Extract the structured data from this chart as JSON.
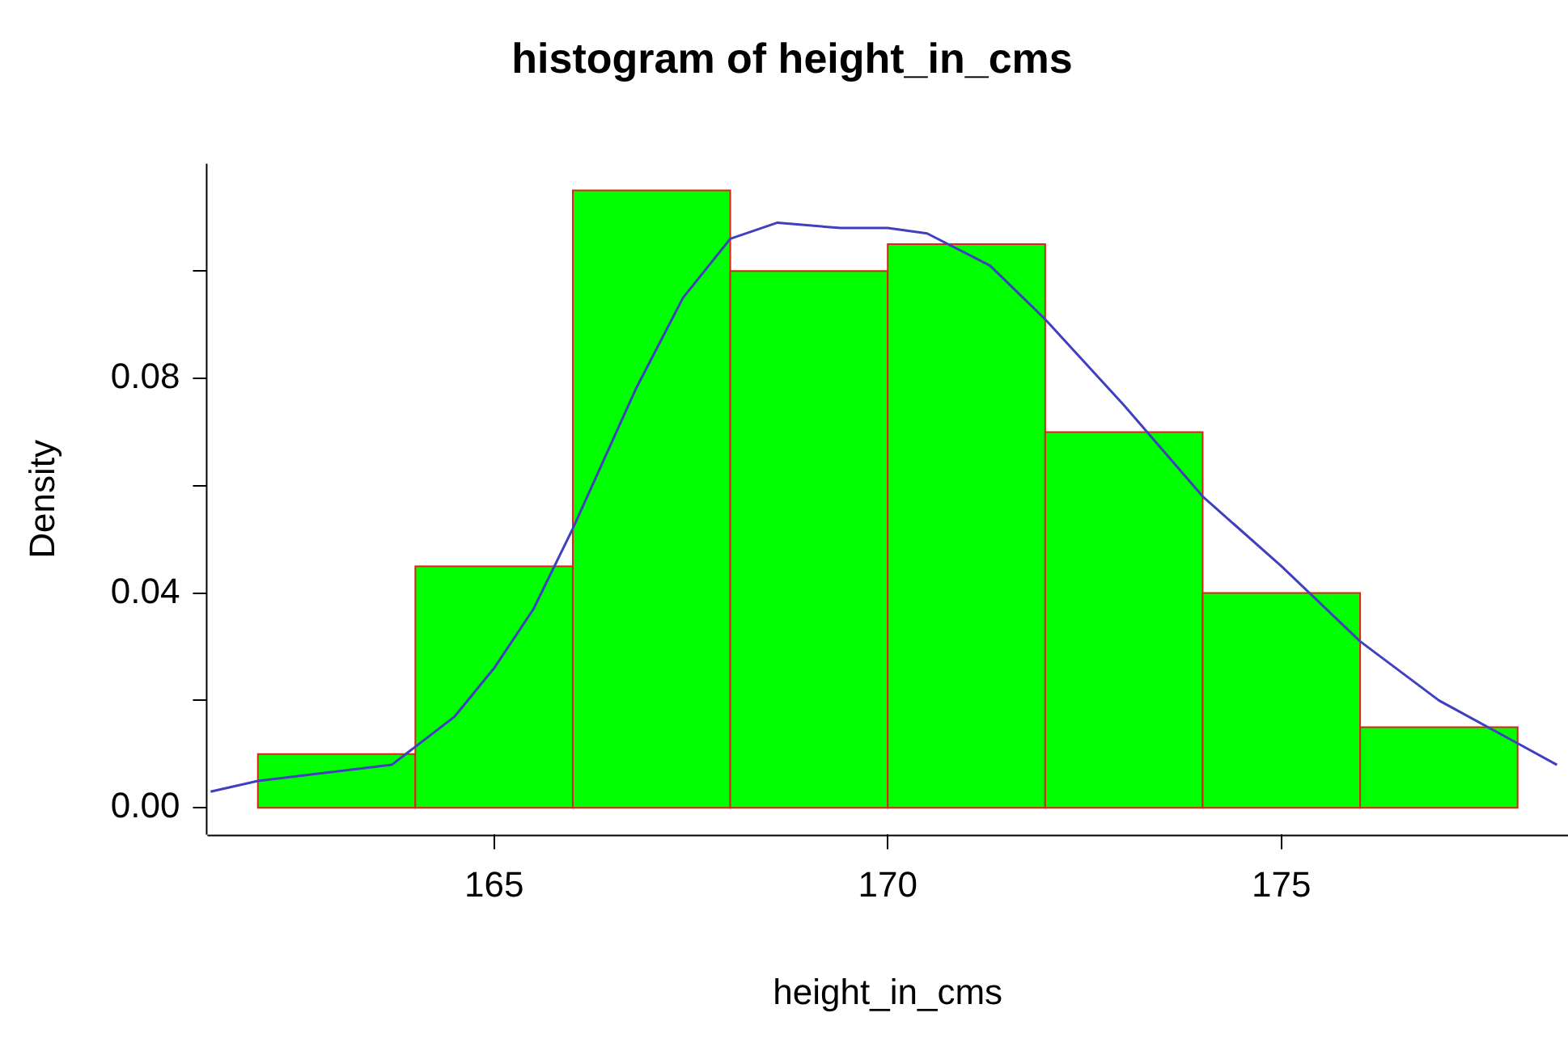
{
  "chart_data": {
    "type": "histogram",
    "title": "histogram of height_in_cms",
    "xlabel": "height_in_cms",
    "ylabel": "Density",
    "bins": [
      162,
      164,
      166,
      168,
      170,
      172,
      174,
      176,
      178
    ],
    "values": [
      0.01,
      0.045,
      0.115,
      0.1,
      0.105,
      0.07,
      0.04,
      0.015
    ],
    "color": "#00ff00",
    "series": [
      {
        "type": "line",
        "color": "#3f3fbf",
        "marker": "none",
        "x": [
          161.4,
          162,
          163.7,
          164.5,
          165,
          165.5,
          166,
          166.8,
          167.4,
          168,
          168.6,
          169.4,
          170,
          170.5,
          171.3,
          172,
          173,
          174,
          175,
          176,
          177,
          178,
          178.5
        ],
        "values": [
          0.003,
          0.005,
          0.008,
          0.017,
          0.026,
          0.037,
          0.052,
          0.078,
          0.095,
          0.106,
          0.109,
          0.108,
          0.108,
          0.107,
          0.101,
          0.091,
          0.075,
          0.058,
          0.045,
          0.031,
          0.02,
          0.012,
          0.008
        ]
      }
    ],
    "xlim": [
      161.36,
      178.64
    ],
    "xticks": [
      165,
      170,
      175
    ],
    "ylim": [
      -0.005,
      0.12
    ],
    "yticks": [
      {
        "value": 0,
        "label": "0.00"
      },
      {
        "value": 0.02,
        "label": null
      },
      0.04,
      {
        "value": 0.06,
        "label": null
      },
      0.08,
      {
        "value": 0.1,
        "label": null
      }
    ],
    "grid": false,
    "legend": false
  }
}
